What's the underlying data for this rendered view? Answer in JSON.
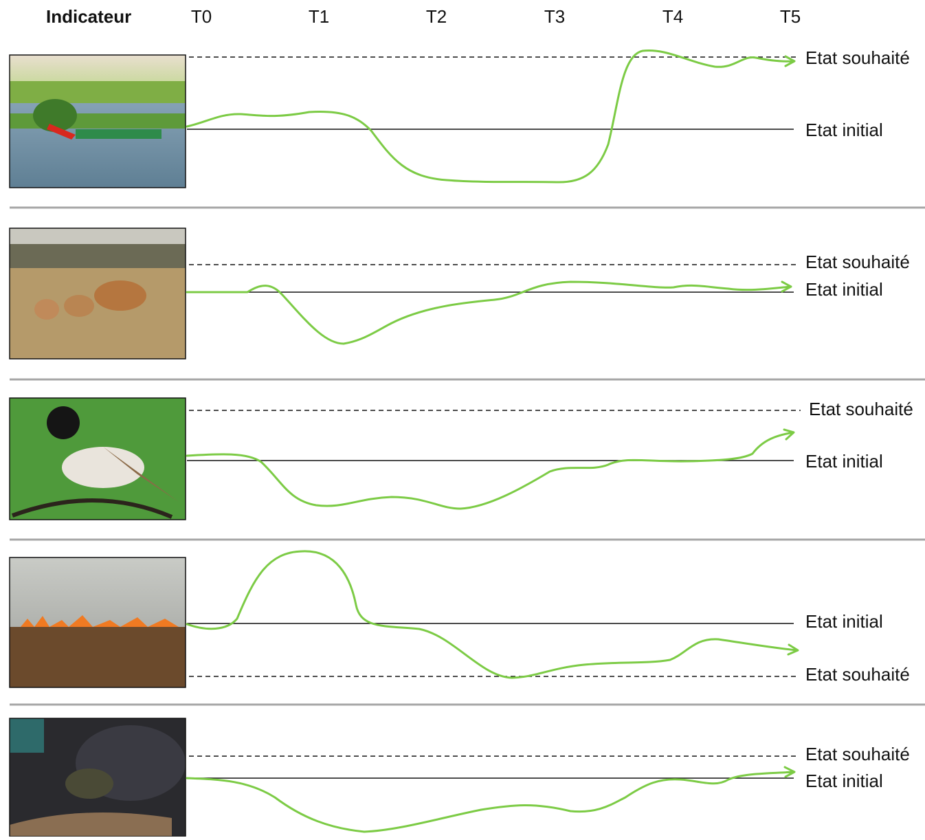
{
  "header": {
    "indicator": "Indicateur",
    "periods": [
      "T0",
      "T1",
      "T2",
      "T3",
      "T4",
      "T5"
    ]
  },
  "rows": [
    {
      "desired": "Etat souhaité",
      "initial": "Etat initial"
    },
    {
      "desired": "Etat souhaité",
      "initial": "Etat initial"
    },
    {
      "desired": "Etat souhaité",
      "initial": "Etat initial"
    },
    {
      "desired": "Etat souhaité",
      "initial": "Etat initial"
    },
    {
      "desired": "Etat souhaité",
      "initial": "Etat initial"
    }
  ]
}
